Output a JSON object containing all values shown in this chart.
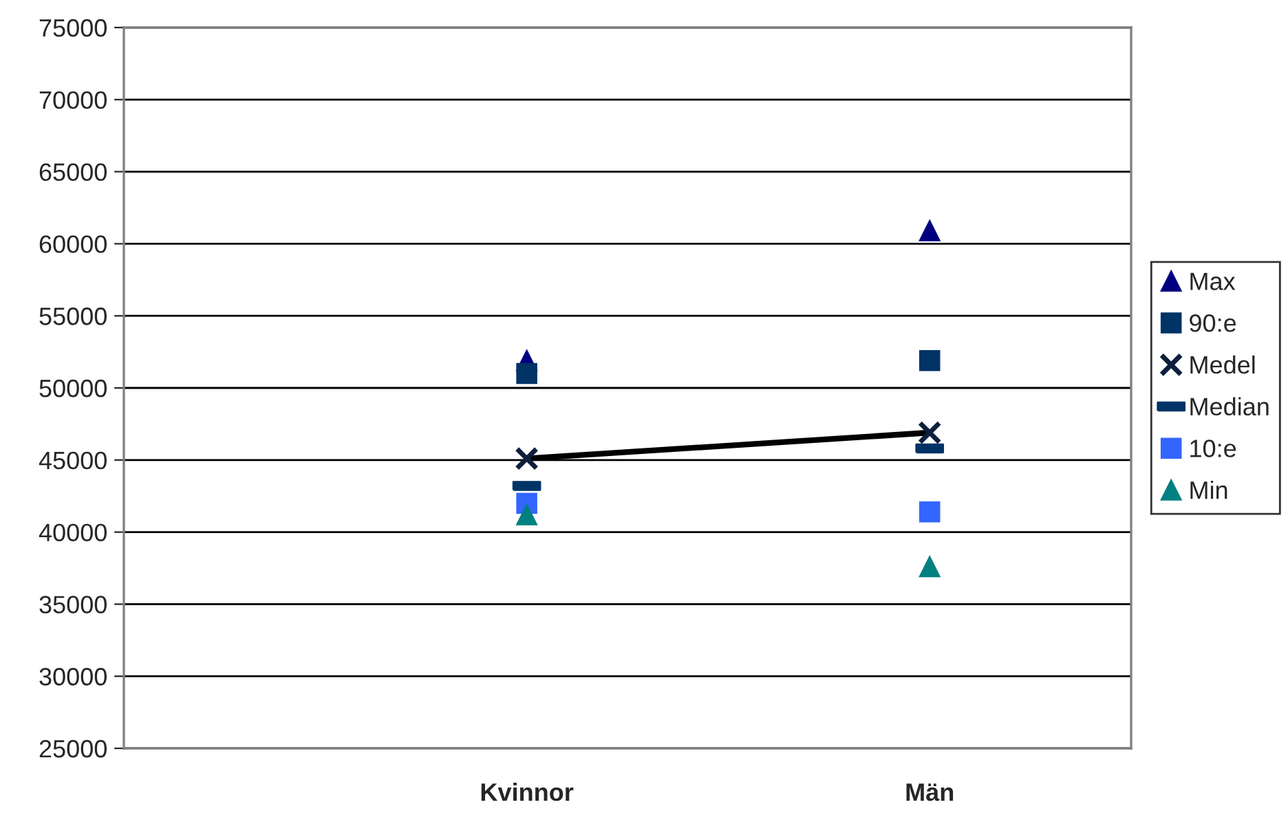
{
  "chart_data": {
    "type": "scatter",
    "categories": [
      "Kvinnor",
      "Män"
    ],
    "series": [
      {
        "name": "Max",
        "color": "#000080",
        "marker": "triangle",
        "values": [
          51900,
          60900
        ]
      },
      {
        "name": "90:e",
        "color": "#003366",
        "marker": "square",
        "values": [
          51000,
          51900
        ]
      },
      {
        "name": "Medel",
        "type": "line",
        "color": "#0d1f3c",
        "marker": "cross",
        "values": [
          45100,
          46900
        ]
      },
      {
        "name": "Median",
        "color": "#003366",
        "values": [
          43200,
          45800
        ]
      },
      {
        "name": "10:e",
        "color": "#3366ff",
        "marker": "square",
        "values": [
          42000,
          41400
        ]
      },
      {
        "name": "Min",
        "color": "#008080",
        "marker": "triangle",
        "values": [
          41200,
          37600
        ]
      }
    ],
    "ylim": [
      25000,
      75000
    ],
    "yticks": [
      25000,
      30000,
      35000,
      40000,
      45000,
      50000,
      55000,
      60000,
      65000,
      70000,
      75000
    ],
    "grid": "y",
    "legend": "right"
  }
}
